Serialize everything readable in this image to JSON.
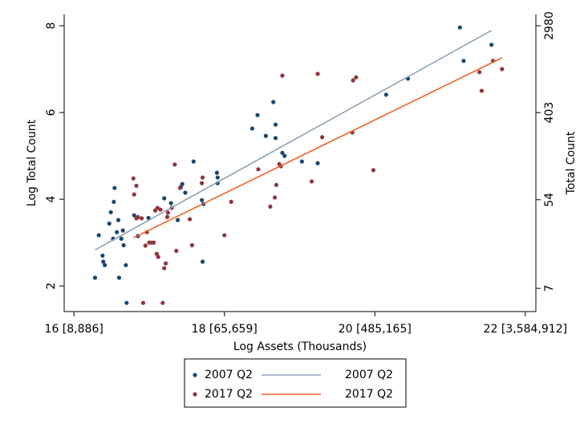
{
  "chart_data": {
    "type": "scatter",
    "xlabel": "Log Assets (Thousands)",
    "ylabel": "Log Total Count",
    "y2label": "Total Count",
    "xlim": [
      15.87,
      22.14
    ],
    "ylim": [
      1.41,
      8.26
    ],
    "y2lim": [
      4.1,
      3866
    ],
    "y2scale": "log",
    "xticks": [
      {
        "value": 16,
        "label": "16 [8,886]"
      },
      {
        "value": 18,
        "label": "18 [65,659]"
      },
      {
        "value": 20,
        "label": "20 [485,165]"
      },
      {
        "value": 22,
        "label": "22 [3,584,912]"
      }
    ],
    "yticks": [
      2,
      4,
      6,
      8
    ],
    "y2ticks": [
      7,
      54,
      403,
      2980
    ],
    "series": [
      {
        "name": "2007 Q2",
        "type": "scatter",
        "color": "#1a476f",
        "x": [
          16.28,
          16.33,
          16.38,
          16.39,
          16.41,
          16.47,
          16.49,
          16.52,
          16.54,
          16.53,
          16.57,
          16.59,
          16.6,
          16.63,
          16.65,
          16.66,
          16.69,
          16.7,
          16.8,
          16.85,
          16.99,
          17.2,
          17.29,
          17.38,
          17.42,
          17.44,
          17.48,
          17.59,
          17.7,
          17.71,
          17.72,
          17.9,
          17.91,
          17.91,
          18.37,
          18.44,
          18.55,
          18.65,
          18.68,
          18.68,
          18.77,
          18.8,
          19.03,
          19.24,
          20.15,
          20.44,
          21.13,
          21.18,
          21.55
        ],
        "values": [
          2.19,
          3.17,
          2.7,
          2.56,
          2.48,
          3.44,
          3.7,
          3.09,
          4.26,
          3.94,
          3.24,
          3.52,
          2.19,
          3.09,
          3.28,
          2.94,
          2.48,
          1.61,
          3.63,
          3.15,
          3.57,
          4.02,
          3.91,
          3.52,
          4.28,
          4.35,
          4.15,
          4.87,
          3.98,
          2.56,
          3.89,
          4.61,
          4.5,
          4.37,
          5.63,
          5.94,
          5.46,
          6.24,
          5.72,
          5.41,
          5.07,
          5.0,
          4.87,
          4.83,
          6.41,
          6.78,
          7.96,
          7.19,
          7.56
        ]
      },
      {
        "name": "2017 Q2",
        "type": "scatter",
        "color": "#90353b",
        "x": [
          16.79,
          16.8,
          16.83,
          16.83,
          16.85,
          16.9,
          16.92,
          16.95,
          16.97,
          17.0,
          17.03,
          17.06,
          17.08,
          17.1,
          17.11,
          17.12,
          17.15,
          17.18,
          17.2,
          17.22,
          17.24,
          17.25,
          17.3,
          17.34,
          17.36,
          17.41,
          17.54,
          17.57,
          17.7,
          17.71,
          18.0,
          18.09,
          18.45,
          18.61,
          18.67,
          18.69,
          18.73,
          18.75,
          18.77,
          19.16,
          19.24,
          19.3,
          19.7,
          19.71,
          19.75,
          19.98,
          21.39,
          21.42,
          21.57,
          21.69
        ],
        "values": [
          4.48,
          4.11,
          4.31,
          3.56,
          3.59,
          3.56,
          1.61,
          2.93,
          3.24,
          3.0,
          3.0,
          3.0,
          3.74,
          2.74,
          3.8,
          2.67,
          3.76,
          1.61,
          2.41,
          2.52,
          3.59,
          3.69,
          3.8,
          4.8,
          2.81,
          4.26,
          3.54,
          2.94,
          4.37,
          4.5,
          3.17,
          3.94,
          4.69,
          3.83,
          4.04,
          4.33,
          4.81,
          4.76,
          6.85,
          4.41,
          6.89,
          5.43,
          5.54,
          6.74,
          6.81,
          4.67,
          6.93,
          6.5,
          7.19,
          7.0
        ]
      },
      {
        "name": "2007 Q2",
        "type": "line",
        "color": "#8ea3b8",
        "x": [
          16.28,
          21.55
        ],
        "values": [
          2.83,
          7.89
        ]
      },
      {
        "name": "2017 Q2",
        "type": "line",
        "color": "#f4622a",
        "x": [
          16.79,
          21.69
        ],
        "values": [
          3.11,
          7.26
        ]
      }
    ]
  }
}
